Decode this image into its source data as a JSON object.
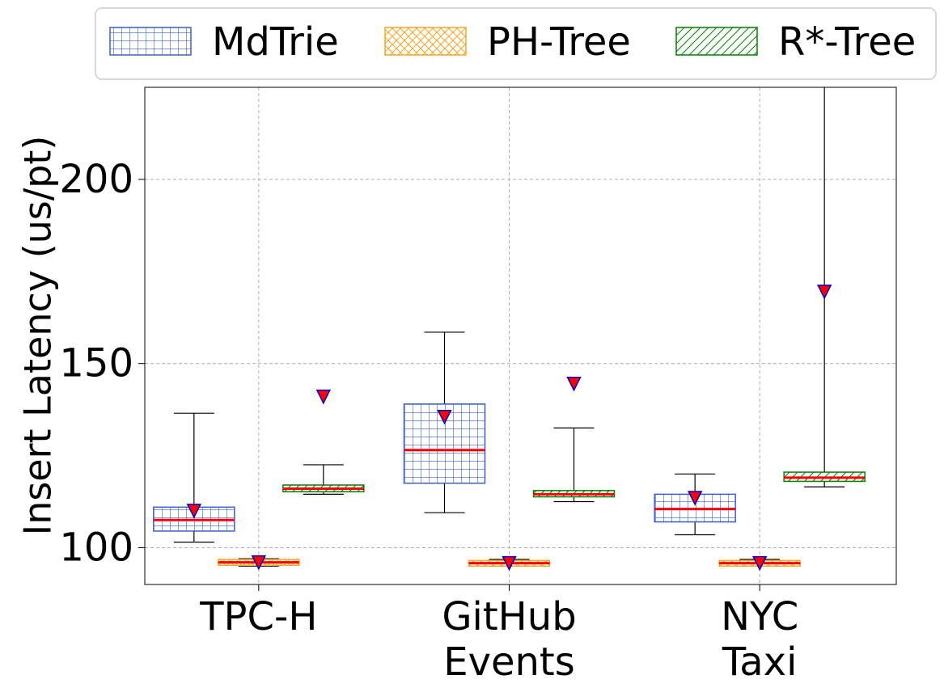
{
  "chart_data": {
    "type": "box",
    "ylabel": "Insert Latency (us/pt)",
    "xlabel": "",
    "ylim": [
      90,
      225
    ],
    "yticks": [
      100,
      150,
      200
    ],
    "grid": true,
    "legend_position": "top",
    "categories": [
      "TPC-H",
      "GitHub Events",
      "NYC Taxi"
    ],
    "category_lines": [
      [
        "TPC-H"
      ],
      [
        "GitHub",
        "Events"
      ],
      [
        "NYC",
        "Taxi"
      ]
    ],
    "series": [
      {
        "name": "MdTrie",
        "color": "#3a5fcd",
        "pattern": "grid",
        "boxes": [
          {
            "whisker_low": 101.5,
            "q1": 104.5,
            "median": 107.5,
            "q3": 111,
            "whisker_high": 136.5,
            "mean": 110
          },
          {
            "whisker_low": 109.5,
            "q1": 117.5,
            "median": 126.5,
            "q3": 139,
            "whisker_high": 158.5,
            "mean": 135.5
          },
          {
            "whisker_low": 103.5,
            "q1": 107,
            "median": 110.5,
            "q3": 114.5,
            "whisker_high": 120,
            "mean": 113.5
          }
        ]
      },
      {
        "name": "PH-Tree",
        "color": "#f5a623",
        "pattern": "crosshatch",
        "boxes": [
          {
            "whisker_low": 95,
            "q1": 95.2,
            "median": 96,
            "q3": 96.8,
            "whisker_high": 97,
            "mean": 96
          },
          {
            "whisker_low": 95,
            "q1": 95,
            "median": 95.8,
            "q3": 96.5,
            "whisker_high": 96.8,
            "mean": 95.8
          },
          {
            "whisker_low": 95,
            "q1": 95,
            "median": 95.8,
            "q3": 96.5,
            "whisker_high": 96.8,
            "mean": 95.8
          }
        ]
      },
      {
        "name": "R*-Tree",
        "color": "#008000",
        "pattern": "diagonal",
        "boxes": [
          {
            "whisker_low": 114.5,
            "q1": 115.2,
            "median": 116,
            "q3": 117,
            "whisker_high": 122.5,
            "mean": 141
          },
          {
            "whisker_low": 112.5,
            "q1": 113.8,
            "median": 114.5,
            "q3": 115.5,
            "whisker_high": 132.5,
            "mean": 144.5
          },
          {
            "whisker_low": 116.5,
            "q1": 118,
            "median": 119,
            "q3": 120.5,
            "whisker_high": 240,
            "mean": 169.5
          }
        ]
      }
    ]
  }
}
